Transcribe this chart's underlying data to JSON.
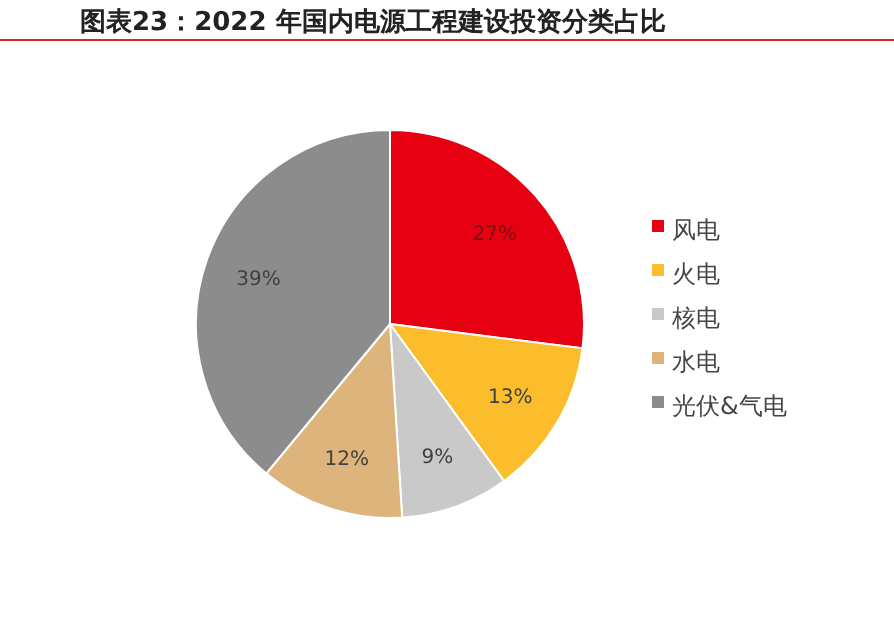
{
  "chart_data": {
    "type": "pie",
    "title": "图表23：2022 年国内电源工程建设投资分类占比",
    "categories": [
      "风电",
      "火电",
      "核电",
      "水电",
      "光伏&气电"
    ],
    "values": [
      27,
      13,
      9,
      12,
      39
    ],
    "colors": [
      "#e60012",
      "#fbbd2b",
      "#c9c9c9",
      "#dcb47c",
      "#8c8c8c"
    ],
    "value_labels": [
      "27%",
      "13%",
      "9%",
      "12%",
      "39%"
    ],
    "legend": "right"
  }
}
